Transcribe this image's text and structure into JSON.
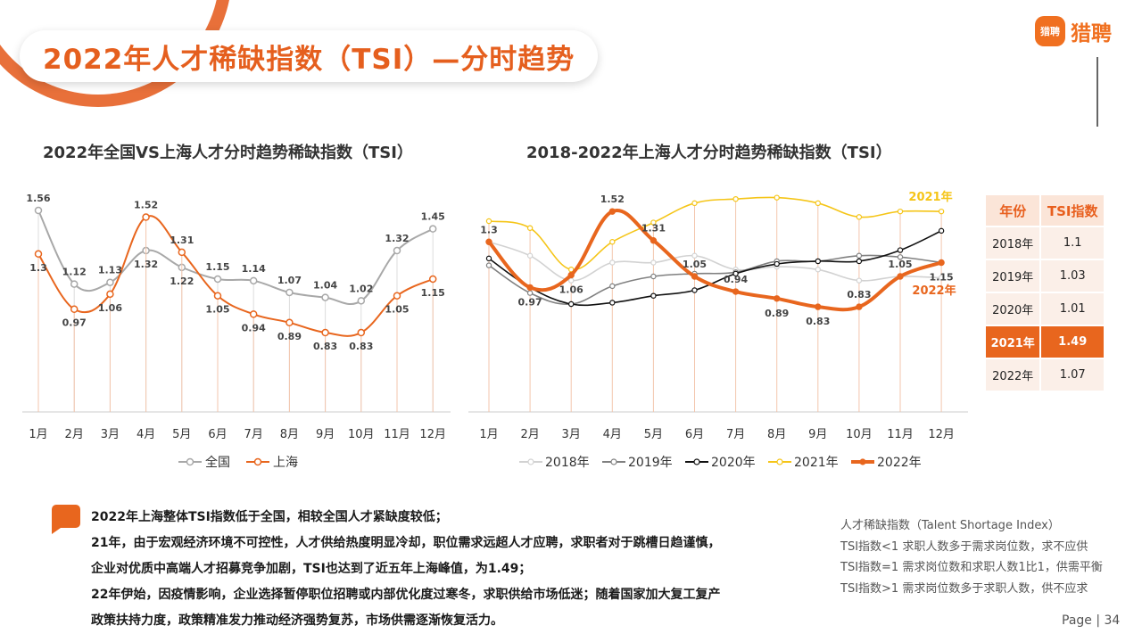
{
  "header": {
    "title": "2022年人才稀缺指数（TSI）—分时趋势",
    "logo_badge": "猎聘",
    "logo_text": "猎聘"
  },
  "chart_data": [
    {
      "type": "line",
      "title": "2022年全国VS上海人才分时趋势稀缺指数（TSI）",
      "categories": [
        "1月",
        "2月",
        "3月",
        "4月",
        "5月",
        "6月",
        "7月",
        "8月",
        "9月",
        "10月",
        "11月",
        "12月"
      ],
      "series": [
        {
          "name": "全国",
          "color": "#a8a8a8",
          "values": [
            1.56,
            1.12,
            1.13,
            1.32,
            1.22,
            1.15,
            1.14,
            1.07,
            1.04,
            1.02,
            1.32,
            1.45
          ]
        },
        {
          "name": "上海",
          "color": "#e8661e",
          "values": [
            1.3,
            0.97,
            1.06,
            1.52,
            1.31,
            1.05,
            0.94,
            0.89,
            0.83,
            0.83,
            1.05,
            1.15
          ]
        }
      ],
      "legend": "bottom"
    },
    {
      "type": "line",
      "title": "2018-2022年上海人才分时趋势稀缺指数（TSI）",
      "categories": [
        "1月",
        "2月",
        "3月",
        "4月",
        "5月",
        "6月",
        "7月",
        "8月",
        "9月",
        "10月",
        "11月",
        "12月"
      ],
      "series": [
        {
          "name": "2018年",
          "color": "#d2d2d2",
          "values": [
            1.3,
            1.2,
            1.02,
            1.15,
            1.15,
            1.2,
            1.1,
            1.12,
            1.1,
            1.02,
            1.05,
            1.04
          ]
        },
        {
          "name": "2019年",
          "color": "#808080",
          "values": [
            1.13,
            0.93,
            0.85,
            0.98,
            1.05,
            1.07,
            1.08,
            1.16,
            1.16,
            1.2,
            1.19,
            1.15
          ]
        },
        {
          "name": "2020年",
          "color": "#111111",
          "values": [
            1.18,
            0.97,
            0.85,
            0.86,
            0.91,
            0.95,
            1.07,
            1.14,
            1.16,
            1.16,
            1.24,
            1.38
          ]
        },
        {
          "name": "2021年",
          "color": "#f5c518",
          "values": [
            1.45,
            1.4,
            1.1,
            1.3,
            1.44,
            1.58,
            1.61,
            1.62,
            1.58,
            1.48,
            1.52,
            1.52
          ]
        },
        {
          "name": "2022年",
          "color": "#e8661e",
          "values": [
            1.3,
            0.97,
            1.06,
            1.52,
            1.31,
            1.05,
            0.94,
            0.89,
            0.83,
            0.83,
            1.05,
            1.15
          ]
        }
      ],
      "data_labels": [
        {
          "month": "1月",
          "text": "1.3"
        },
        {
          "month": "2月",
          "text": "0.97"
        },
        {
          "month": "3月",
          "text": "1.06"
        },
        {
          "month": "4月",
          "text": "1.52"
        },
        {
          "month": "5月",
          "text": "1.31"
        },
        {
          "month": "6月",
          "text": "1.05"
        },
        {
          "month": "7月",
          "text": "0.94"
        },
        {
          "month": "8月",
          "text": "0.89"
        },
        {
          "month": "9月",
          "text": "0.83"
        },
        {
          "month": "10月",
          "text": "0.83"
        },
        {
          "month": "11月",
          "text": "1.05"
        },
        {
          "month": "12月",
          "text": "1.15"
        }
      ],
      "end_labels": [
        "2021年",
        "2022年"
      ],
      "legend": "bottom"
    },
    {
      "type": "table",
      "headers": [
        "年份",
        "TSI指数"
      ],
      "rows": [
        [
          "2018年",
          "1.1"
        ],
        [
          "2019年",
          "1.03"
        ],
        [
          "2020年",
          "1.01"
        ],
        [
          "2021年",
          "1.49"
        ],
        [
          "2022年",
          "1.07"
        ]
      ],
      "highlight_row": 3,
      "highlight_color": "#e8661e"
    }
  ],
  "notes": [
    "2022年上海整体TSI指数低于全国，相较全国人才紧缺度较低；",
    "21年，由于宏观经济环境不可控性，人才供给热度明显冷却，职位需求远超人才应聘，求职者对于跳槽日趋谨慎，",
    "企业对优质中高端人才招募竞争加剧，TSI也达到了近五年上海峰值，为1.49；",
    "22年伊始，因疫情影响，企业选择暂停职位招聘或内部优化度过寒冬，求职供给市场低迷；随着国家加大复工复产",
    "政策扶持力度，政策精准发力推动经济强势复苏，市场供需逐渐恢复活力。"
  ],
  "definition": [
    "人才稀缺指数（Talent Shortage Index）",
    "TSI指数<1  求职人数多于需求岗位数，求不应供",
    "TSI指数=1  需求岗位数和求职人数1比1，供需平衡",
    "TSI指数>1  需求岗位数多于求职人数，供不应求"
  ],
  "footer": {
    "page_label": "Page |  34"
  }
}
